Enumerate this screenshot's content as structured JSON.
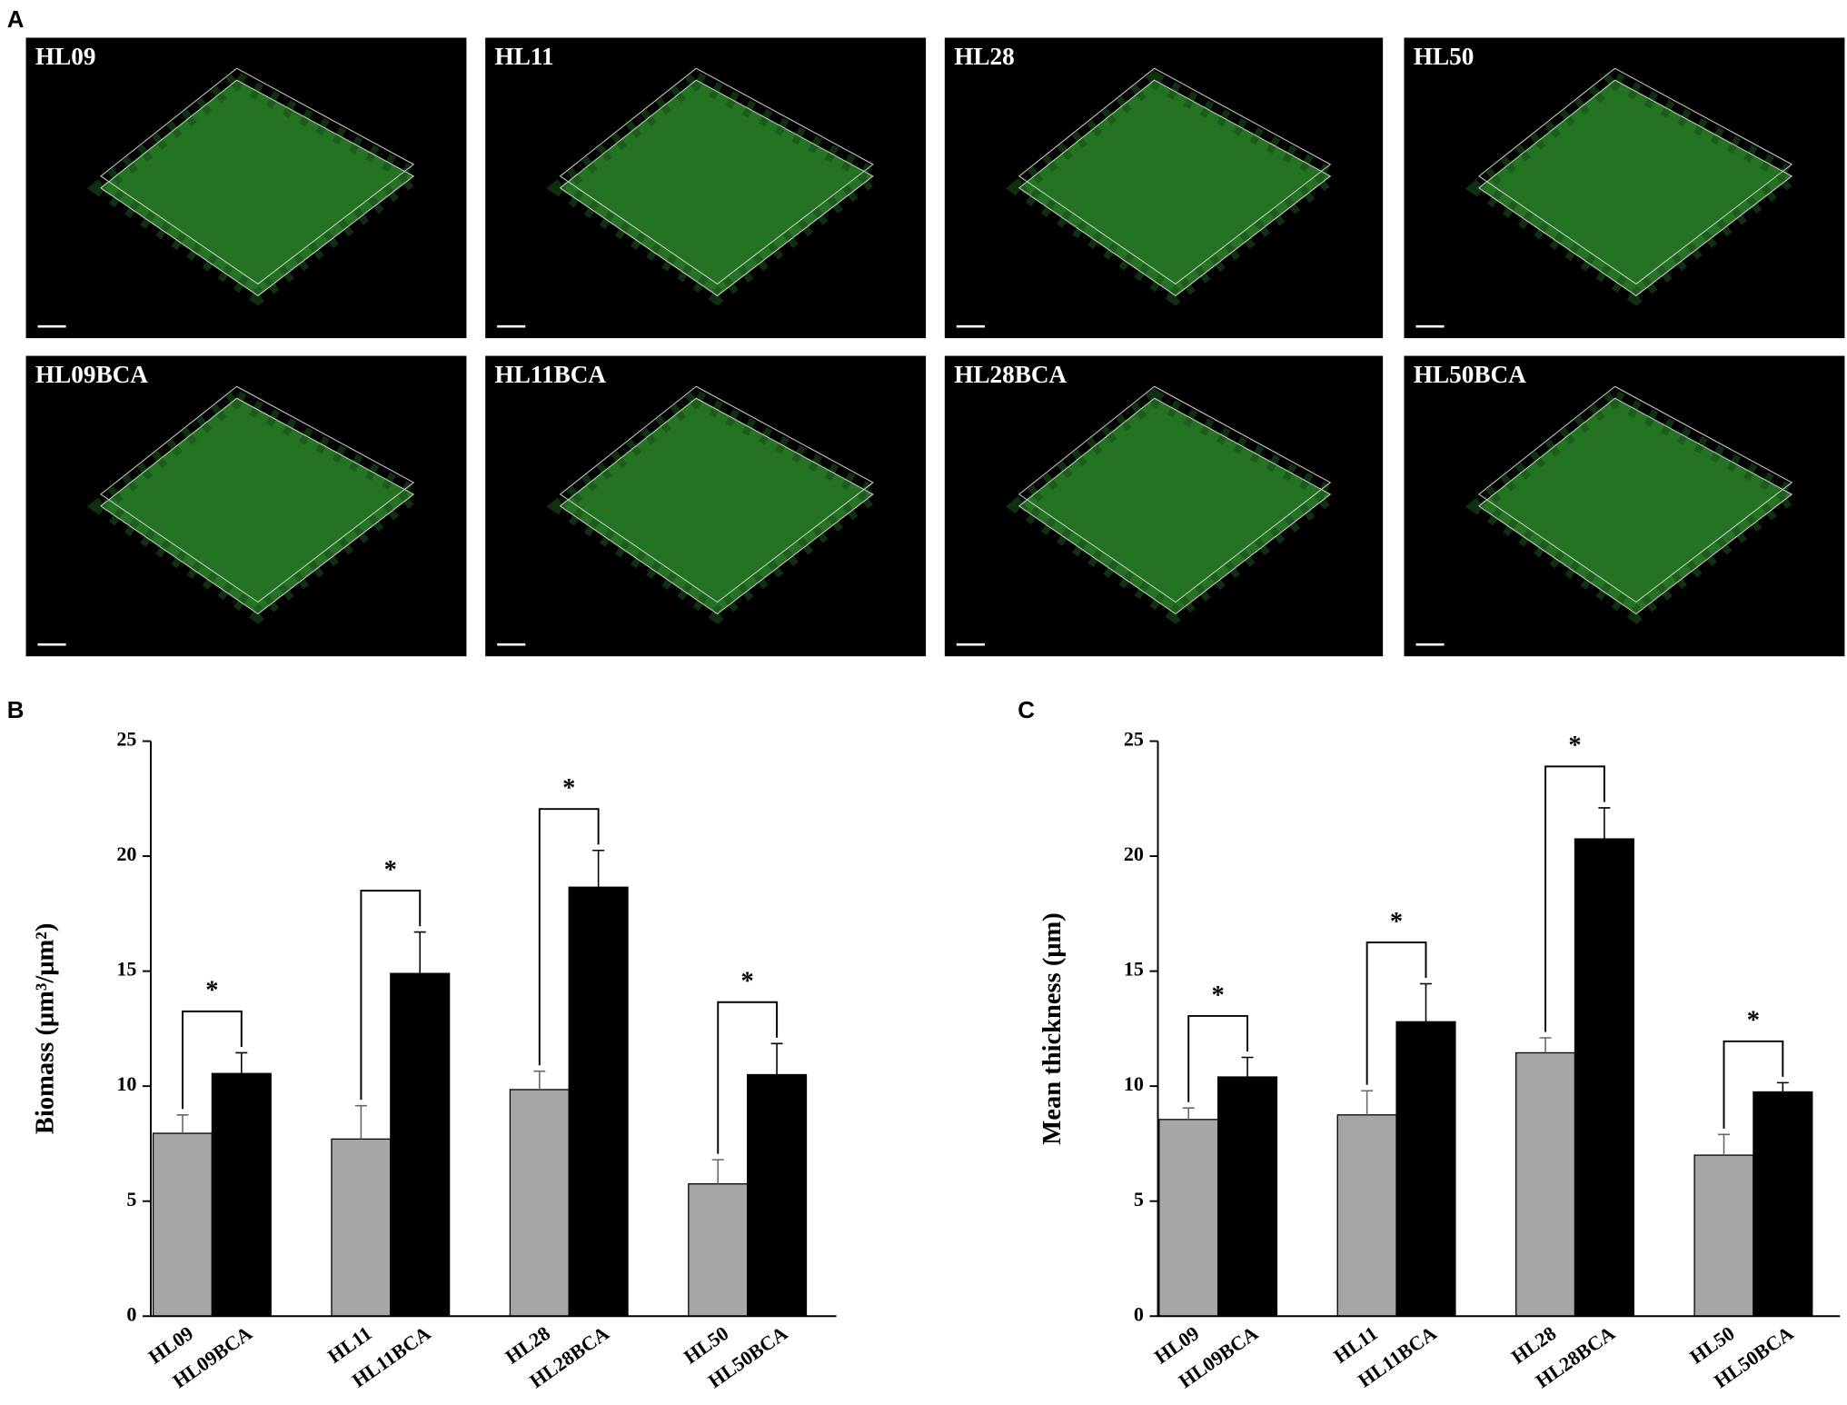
{
  "panel_labels": [
    "A",
    "B",
    "C"
  ],
  "images": [
    "HL09",
    "HL11",
    "HL28",
    "HL50",
    "HL09BCA",
    "HL11BCA",
    "HL28BCA",
    "HL50BCA"
  ],
  "chart_data": [
    {
      "type": "bar",
      "ylabel": "Biomass (μm³/μm²)",
      "ylim": [
        0,
        25
      ],
      "yticks": [
        0,
        5,
        10,
        15,
        20,
        25
      ],
      "series": [
        {
          "color": "#a6a6a6",
          "labels": [
            "HL09",
            "HL11",
            "HL28",
            "HL50"
          ],
          "values": [
            7.95,
            7.7,
            9.85,
            5.75
          ],
          "errors": [
            0.8,
            1.45,
            0.8,
            1.05
          ]
        },
        {
          "color": "#000000",
          "labels": [
            "HL09BCA",
            "HL11BCA",
            "HL28BCA",
            "HL50BCA"
          ],
          "values": [
            10.55,
            14.9,
            18.65,
            10.5
          ],
          "errors": [
            0.9,
            1.8,
            1.6,
            1.35
          ]
        }
      ],
      "significance": [
        "*",
        "*",
        "*",
        "*"
      ]
    },
    {
      "type": "bar",
      "ylabel": "Mean thickness (μm)",
      "ylim": [
        0,
        25
      ],
      "yticks": [
        0,
        5,
        10,
        15,
        20,
        25
      ],
      "series": [
        {
          "color": "#a6a6a6",
          "labels": [
            "HL09",
            "HL11",
            "HL28",
            "HL50"
          ],
          "values": [
            8.55,
            8.75,
            11.45,
            7.0
          ],
          "errors": [
            0.5,
            1.05,
            0.65,
            0.9
          ]
        },
        {
          "color": "#000000",
          "labels": [
            "HL09BCA",
            "HL11BCA",
            "HL28BCA",
            "HL50BCA"
          ],
          "values": [
            10.4,
            12.8,
            20.75,
            9.75
          ],
          "errors": [
            0.85,
            1.65,
            1.35,
            0.4
          ]
        }
      ],
      "significance": [
        "*",
        "*",
        "*",
        "*"
      ]
    }
  ]
}
